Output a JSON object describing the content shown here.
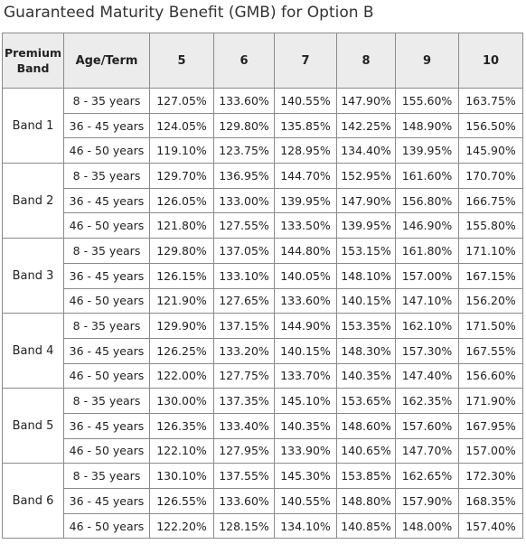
{
  "title": "Guaranteed Maturity Benefit (GMB) for Option B",
  "table": {
    "headers": [
      "Premium Band",
      "Age/Term",
      "5",
      "6",
      "7",
      "8",
      "9",
      "10"
    ],
    "bands": [
      {
        "name": "Band 1",
        "rows": [
          {
            "age": "8 - 35 years",
            "values": [
              "127.05%",
              "133.60%",
              "140.55%",
              "147.90%",
              "155.60%",
              "163.75%"
            ]
          },
          {
            "age": "36 - 45 years",
            "values": [
              "124.05%",
              "129.80%",
              "135.85%",
              "142.25%",
              "148.90%",
              "156.50%"
            ]
          },
          {
            "age": "46 - 50 years",
            "values": [
              "119.10%",
              "123.75%",
              "128.95%",
              "134.40%",
              "139.95%",
              "145.90%"
            ]
          }
        ]
      },
      {
        "name": "Band 2",
        "rows": [
          {
            "age": "8 - 35 years",
            "values": [
              "129.70%",
              "136.95%",
              "144.70%",
              "152.95%",
              "161.60%",
              "170.70%"
            ]
          },
          {
            "age": "36 - 45 years",
            "values": [
              "126.05%",
              "133.00%",
              "139.95%",
              "147.90%",
              "156.80%",
              "166.75%"
            ]
          },
          {
            "age": "46 - 50 years",
            "values": [
              "121.80%",
              "127.55%",
              "133.50%",
              "139.95%",
              "146.90%",
              "155.80%"
            ]
          }
        ]
      },
      {
        "name": "Band 3",
        "rows": [
          {
            "age": "8 - 35 years",
            "values": [
              "129.80%",
              "137.05%",
              "144.80%",
              "153.15%",
              "161.80%",
              "171.10%"
            ]
          },
          {
            "age": "36 - 45 years",
            "values": [
              "126.15%",
              "133.10%",
              "140.05%",
              "148.10%",
              "157.00%",
              "167.15%"
            ]
          },
          {
            "age": "46 - 50 years",
            "values": [
              "121.90%",
              "127.65%",
              "133.60%",
              "140.15%",
              "147.10%",
              "156.20%"
            ]
          }
        ]
      },
      {
        "name": "Band 4",
        "rows": [
          {
            "age": "8 - 35 years",
            "values": [
              "129.90%",
              "137.15%",
              "144.90%",
              "153.35%",
              "162.10%",
              "171.50%"
            ]
          },
          {
            "age": "36 - 45 years",
            "values": [
              "126.25%",
              "133.20%",
              "140.15%",
              "148.30%",
              "157.30%",
              "167.55%"
            ]
          },
          {
            "age": "46 - 50 years",
            "values": [
              "122.00%",
              "127.75%",
              "133.70%",
              "140.35%",
              "147.40%",
              "156.60%"
            ]
          }
        ]
      },
      {
        "name": "Band 5",
        "rows": [
          {
            "age": "8 - 35 years",
            "values": [
              "130.00%",
              "137.35%",
              "145.10%",
              "153.65%",
              "162.35%",
              "171.90%"
            ]
          },
          {
            "age": "36 - 45 years",
            "values": [
              "126.35%",
              "133.40%",
              "140.35%",
              "148.60%",
              "157.60%",
              "167.95%"
            ]
          },
          {
            "age": "46 - 50 years",
            "values": [
              "122.10%",
              "127.95%",
              "133.90%",
              "140.65%",
              "147.70%",
              "157.00%"
            ]
          }
        ]
      },
      {
        "name": "Band 6",
        "rows": [
          {
            "age": "8 - 35 years",
            "values": [
              "130.10%",
              "137.55%",
              "145.30%",
              "153.85%",
              "162.65%",
              "172.30%"
            ]
          },
          {
            "age": "36 - 45 years",
            "values": [
              "126.55%",
              "133.60%",
              "140.55%",
              "148.80%",
              "157.90%",
              "168.35%"
            ]
          },
          {
            "age": "46 - 50 years",
            "values": [
              "122.20%",
              "128.15%",
              "134.10%",
              "140.85%",
              "148.00%",
              "157.40%"
            ]
          }
        ]
      }
    ]
  }
}
